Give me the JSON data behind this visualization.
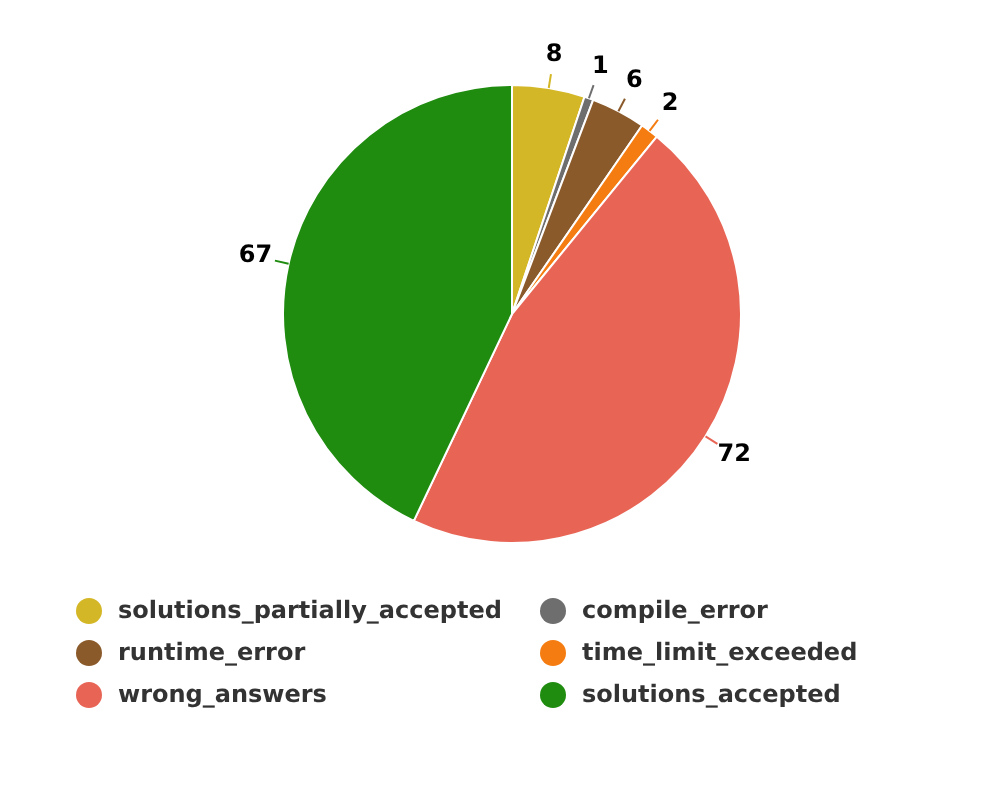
{
  "chart_data": {
    "type": "pie",
    "categories": [
      "solutions_partially_accepted",
      "compile_error",
      "runtime_error",
      "time_limit_exceeded",
      "wrong_answers",
      "solutions_accepted"
    ],
    "values": [
      8,
      1,
      6,
      2,
      72,
      67
    ],
    "colors": [
      "#d4b726",
      "#6e6e6e",
      "#8b5a2b",
      "#f57c10",
      "#e86556",
      "#1f8c10"
    ],
    "data_labels": true,
    "legend": "bottom"
  }
}
